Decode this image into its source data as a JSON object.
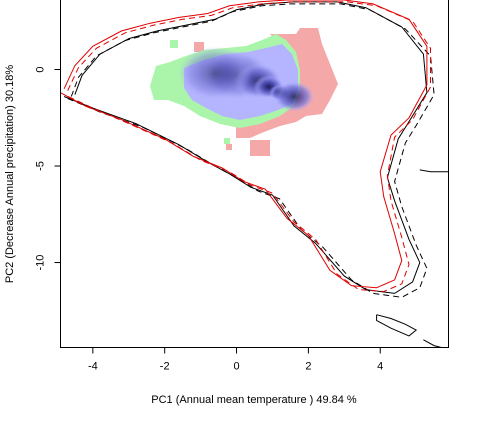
{
  "chart_data": {
    "type": "scatter",
    "title": "",
    "xlabel": "PC1 (Annual mean temperature ) 49.84 %",
    "ylabel": "PC2 (Decrease Annual precipitation) 30.18%",
    "xlim": [
      -4.9,
      5.9
    ],
    "ylim": [
      -14.4,
      3.6
    ],
    "x_ticks": [
      -4,
      -2,
      0,
      2,
      4
    ],
    "y_ticks": [
      0,
      -5,
      -10
    ],
    "grid": false,
    "legend": "none",
    "colors": {
      "density_low": "#b4b4ff",
      "density_high": "#0a0a3c",
      "green_region": "#aaf5aa",
      "pink_region": "#f5a8a8",
      "black_outline": "#000000",
      "red_outline": "#e00000"
    },
    "density_core": [
      {
        "x": 0.0,
        "y": -0.3,
        "v": 0.3
      },
      {
        "x": 0.6,
        "y": -0.6,
        "v": 0.6
      },
      {
        "x": 0.9,
        "y": -0.9,
        "v": 0.85
      },
      {
        "x": 1.2,
        "y": -1.2,
        "v": 1.0
      },
      {
        "x": 1.6,
        "y": -1.4,
        "v": 0.7
      },
      {
        "x": -0.6,
        "y": -0.2,
        "v": 0.2
      }
    ],
    "series": [
      {
        "style": "black-solid",
        "x": [
          -4.5,
          -4.3,
          -3.8,
          -3.0,
          -2.2,
          -1.4,
          -0.6,
          0.0,
          0.8,
          1.6,
          2.4,
          2.8,
          3.6,
          4.6,
          5.2,
          5.3,
          4.8,
          4.5,
          4.2,
          4.4,
          4.8,
          5.1,
          4.9,
          4.4,
          3.6,
          3.0,
          2.2,
          1.6,
          1.0,
          0.4,
          -0.2,
          -0.8,
          -1.6,
          -2.8,
          -4.0,
          -4.8
        ],
        "y": [
          -1.3,
          -0.3,
          0.8,
          1.6,
          2.0,
          2.3,
          2.6,
          3.1,
          3.4,
          3.5,
          3.5,
          3.5,
          3.2,
          2.2,
          0.8,
          -1.2,
          -2.7,
          -3.6,
          -5.6,
          -6.8,
          -8.8,
          -10.0,
          -11.0,
          -11.6,
          -11.4,
          -10.7,
          -9.0,
          -8.1,
          -6.5,
          -6.1,
          -5.4,
          -4.8,
          -3.9,
          -2.8,
          -2.0,
          -1.4
        ]
      },
      {
        "style": "black-dashed",
        "x": [
          -4.6,
          -4.4,
          -3.9,
          -3.1,
          -2.3,
          -1.5,
          -0.7,
          -0.1,
          0.7,
          1.5,
          2.3,
          2.9,
          3.7,
          4.7,
          5.4,
          5.5,
          5.0,
          4.7,
          4.4,
          4.6,
          5.0,
          5.3,
          5.1,
          4.6,
          3.8,
          3.2,
          2.4,
          1.8,
          1.2,
          0.6,
          0.0,
          -0.6,
          -1.4,
          -2.6,
          -3.8,
          -4.7
        ],
        "y": [
          -1.4,
          -0.4,
          0.7,
          1.5,
          1.9,
          2.2,
          2.5,
          3.0,
          3.3,
          3.4,
          3.4,
          3.4,
          3.1,
          2.1,
          0.7,
          -1.3,
          -2.9,
          -3.8,
          -5.8,
          -7.1,
          -9.1,
          -10.3,
          -11.3,
          -11.8,
          -11.6,
          -10.9,
          -9.2,
          -8.3,
          -6.7,
          -6.3,
          -5.6,
          -5.0,
          -4.1,
          -3.0,
          -2.2,
          -1.5
        ]
      },
      {
        "style": "red-solid",
        "x": [
          -4.8,
          -4.5,
          -4.0,
          -3.2,
          -2.4,
          -1.6,
          -0.8,
          -0.2,
          0.6,
          1.4,
          2.2,
          3.0,
          3.8,
          4.8,
          5.3,
          5.3,
          4.8,
          4.3,
          4.0,
          4.1,
          4.4,
          4.6,
          4.4,
          3.9,
          3.2,
          2.6,
          2.0,
          1.4,
          0.8,
          0.2,
          -0.4,
          -1.2,
          -2.0,
          -3.2,
          -4.2,
          -4.9
        ],
        "y": [
          -1.0,
          0.2,
          1.2,
          2.0,
          2.4,
          2.7,
          2.9,
          3.3,
          3.5,
          3.6,
          3.6,
          3.6,
          3.4,
          2.6,
          1.2,
          -0.8,
          -2.5,
          -3.4,
          -5.3,
          -6.6,
          -8.5,
          -9.9,
          -10.9,
          -11.3,
          -11.2,
          -10.4,
          -8.6,
          -7.7,
          -6.2,
          -5.8,
          -5.1,
          -4.5,
          -3.6,
          -2.6,
          -1.9,
          -1.2
        ]
      },
      {
        "style": "red-dashed",
        "x": [
          -4.7,
          -4.4,
          -3.9,
          -3.1,
          -2.3,
          -1.5,
          -0.7,
          -0.1,
          0.7,
          1.5,
          2.3,
          3.1,
          3.9,
          4.9,
          5.4,
          5.4,
          4.9,
          4.4,
          4.2,
          4.3,
          4.6,
          4.8,
          4.6,
          4.1,
          3.4,
          2.8,
          2.2,
          1.6,
          1.0,
          0.4,
          -0.2,
          -1.0,
          -1.8,
          -3.0,
          -4.0,
          -4.8
        ],
        "y": [
          -1.1,
          0.1,
          1.1,
          1.9,
          2.3,
          2.6,
          2.8,
          3.2,
          3.4,
          3.5,
          3.5,
          3.5,
          3.3,
          2.5,
          1.1,
          -0.9,
          -2.6,
          -3.5,
          -5.5,
          -6.8,
          -8.7,
          -10.1,
          -11.1,
          -11.5,
          -11.4,
          -10.6,
          -8.8,
          -7.9,
          -6.4,
          -6.0,
          -5.3,
          -4.7,
          -3.8,
          -2.8,
          -2.0,
          -1.3
        ]
      },
      {
        "style": "black-solid",
        "x": [
          3.9,
          4.3,
          4.7,
          5.0,
          4.8,
          4.3,
          3.9,
          3.9
        ],
        "y": [
          -12.7,
          -12.9,
          -13.2,
          -13.5,
          -13.8,
          -13.4,
          -13.0,
          -12.7
        ]
      },
      {
        "style": "black-solid",
        "x": [
          5.2,
          5.5,
          5.7
        ],
        "y": [
          -14.0,
          -14.3,
          -14.4
        ]
      },
      {
        "style": "black-solid",
        "x": [
          5.1,
          5.4,
          5.9
        ],
        "y": [
          -5.2,
          -5.3,
          -5.3
        ]
      }
    ]
  }
}
